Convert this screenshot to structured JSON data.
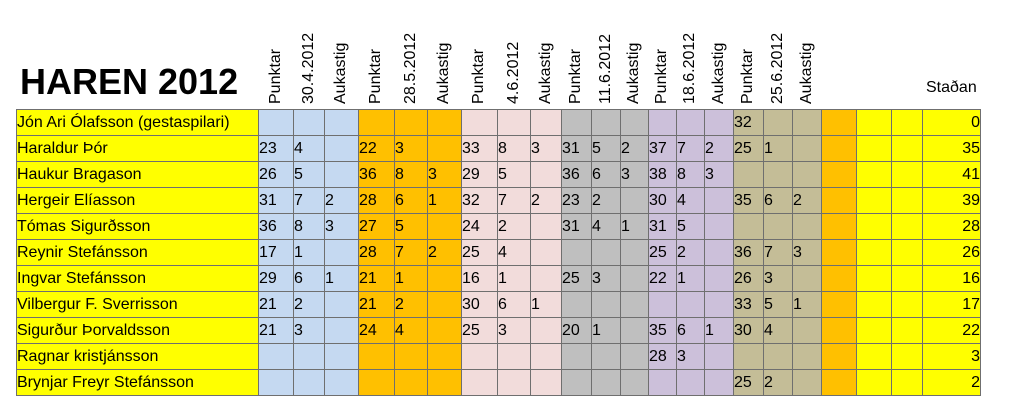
{
  "title": "HAREN 2012",
  "column_headers": [
    "Punktar",
    "30.4.2012",
    "Aukastig",
    "Punktar",
    "28.5.2012",
    "Aukastig",
    "Punktar",
    "4.6.2012",
    "Aukastig",
    "Punktar",
    "11.6.2012",
    "Aukastig",
    "Punktar",
    "18.6.2012",
    "Aukastig",
    "Punktar",
    "25.6.2012",
    "Aukastig"
  ],
  "stadan_header": "Staðan",
  "rows": [
    {
      "name": "Jón Ari Ólafsson (gestaspilari)",
      "cells": [
        "",
        "",
        "",
        "",
        "",
        "",
        "",
        "",
        "",
        "",
        "",
        "",
        "",
        "",
        "",
        "32",
        "",
        ""
      ],
      "stadan": "0"
    },
    {
      "name": "Haraldur Þór",
      "cells": [
        "23",
        "4",
        "",
        "22",
        "3",
        "",
        "33",
        "8",
        "3",
        "31",
        "5",
        "2",
        "37",
        "7",
        "2",
        "25",
        "1",
        ""
      ],
      "stadan": "35"
    },
    {
      "name": "Haukur Bragason",
      "cells": [
        "26",
        "5",
        "",
        "36",
        "8",
        "3",
        "29",
        "5",
        "",
        "36",
        "6",
        "3",
        "38",
        "8",
        "3",
        "",
        "",
        ""
      ],
      "stadan": "41"
    },
    {
      "name": "Hergeir Elíasson",
      "cells": [
        "31",
        "7",
        "2",
        "28",
        "6",
        "1",
        "32",
        "7",
        "2",
        "23",
        "2",
        "",
        "30",
        "4",
        "",
        "35",
        "6",
        "2"
      ],
      "stadan": "39"
    },
    {
      "name": "Tómas Sigurðsson",
      "cells": [
        "36",
        "8",
        "3",
        "27",
        "5",
        "",
        "24",
        "2",
        "",
        "31",
        "4",
        "1",
        "31",
        "5",
        "",
        "",
        "",
        ""
      ],
      "stadan": "28"
    },
    {
      "name": "Reynir Stefánsson",
      "cells": [
        "17",
        "1",
        "",
        "28",
        "7",
        "2",
        "25",
        "4",
        "",
        "",
        "",
        "",
        "25",
        "2",
        "",
        "36",
        "7",
        "3"
      ],
      "stadan": "26"
    },
    {
      "name": "Ingvar Stefánsson",
      "cells": [
        "29",
        "6",
        "1",
        "21",
        "1",
        "",
        "16",
        "1",
        "",
        "25",
        "3",
        "",
        "22",
        "1",
        "",
        "26",
        "3",
        ""
      ],
      "stadan": "16"
    },
    {
      "name": "Vilbergur F. Sverrisson",
      "cells": [
        "21",
        "2",
        "",
        "21",
        "2",
        "",
        "30",
        "6",
        "1",
        "",
        "",
        "",
        "",
        "",
        "",
        "33",
        "5",
        "1"
      ],
      "stadan": "17"
    },
    {
      "name": "Sigurður Þorvaldsson",
      "cells": [
        "21",
        "3",
        "",
        "24",
        "4",
        "",
        "25",
        "3",
        "",
        "20",
        "1",
        "",
        "35",
        "6",
        "1",
        "30",
        "4",
        ""
      ],
      "stadan": "22"
    },
    {
      "name": "Ragnar kristjánsson",
      "cells": [
        "",
        "",
        "",
        "",
        "",
        "",
        "",
        "",
        "",
        "",
        "",
        "",
        "28",
        "3",
        "",
        "",
        "",
        ""
      ],
      "stadan": "3"
    },
    {
      "name": "Brynjar Freyr Stefánsson",
      "cells": [
        "",
        "",
        "",
        "",
        "",
        "",
        "",
        "",
        "",
        "",
        "",
        "",
        "",
        "",
        "",
        "25",
        "2",
        ""
      ],
      "stadan": "2"
    }
  ],
  "colors": {
    "name_col": "#ffff00",
    "block1": "#c5d9f1",
    "block2": "#ffc000",
    "block3": "#f2dcdb",
    "block4": "#bfbfbf",
    "block5": "#ccc0da",
    "block6": "#c4bd97",
    "extra_orange": "#ffc000",
    "extra_yellow": "#ffff00"
  }
}
